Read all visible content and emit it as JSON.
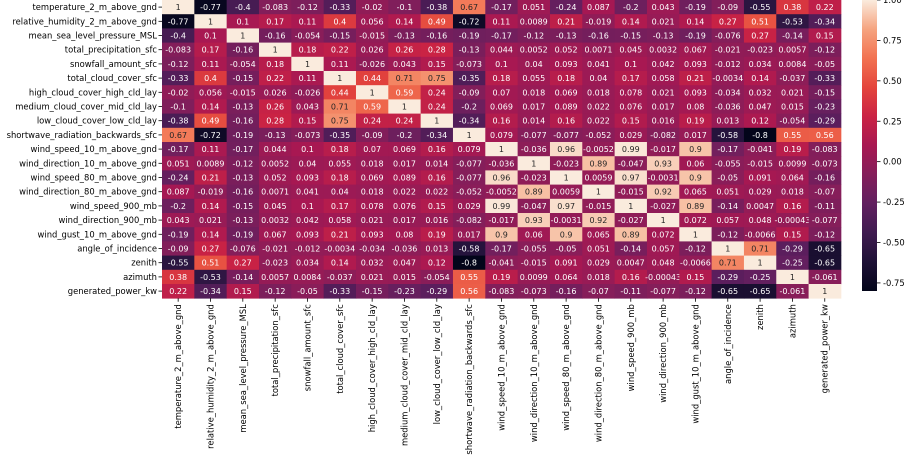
{
  "chart_data": {
    "type": "heatmap",
    "title": "",
    "xlabel": "",
    "ylabel": "",
    "vmin": -0.8,
    "vmax": 1.0,
    "colormap": "rocket",
    "colorbar_ticks": [
      1.0,
      0.75,
      0.5,
      0.25,
      0.0,
      -0.25,
      -0.5,
      -0.75
    ],
    "colorbar_tick_labels": [
      "1.00",
      "0.75",
      "0.50",
      "0.25",
      "0.00",
      "-0.25",
      "-0.50",
      "-0.75"
    ],
    "variables": [
      "temperature_2_m_above_gnd",
      "relative_humidity_2_m_above_gnd",
      "mean_sea_level_pressure_MSL",
      "total_precipitation_sfc",
      "snowfall_amount_sfc",
      "total_cloud_cover_sfc",
      "high_cloud_cover_high_cld_lay",
      "medium_cloud_cover_mid_cld_lay",
      "low_cloud_cover_low_cld_lay",
      "shortwave_radiation_backwards_sfc",
      "wind_speed_10_m_above_gnd",
      "wind_direction_10_m_above_gnd",
      "wind_speed_80_m_above_gnd",
      "wind_direction_80_m_above_gnd",
      "wind_speed_900_mb",
      "wind_direction_900_mb",
      "wind_gust_10_m_above_gnd",
      "angle_of_incidence",
      "zenith",
      "azimuth",
      "generated_power_kw"
    ],
    "values": [
      [
        1,
        -0.77,
        -0.4,
        -0.083,
        -0.12,
        -0.33,
        -0.02,
        -0.1,
        -0.38,
        0.67,
        -0.17,
        0.051,
        -0.24,
        0.087,
        -0.2,
        0.043,
        -0.19,
        -0.09,
        -0.55,
        0.38,
        0.22
      ],
      [
        -0.77,
        1,
        0.1,
        0.17,
        0.11,
        0.4,
        0.056,
        0.14,
        0.49,
        -0.72,
        0.11,
        0.0089,
        0.21,
        -0.019,
        0.14,
        0.021,
        0.14,
        0.27,
        0.51,
        -0.53,
        -0.34
      ],
      [
        -0.4,
        0.1,
        1,
        -0.16,
        -0.054,
        -0.15,
        -0.015,
        -0.13,
        -0.16,
        -0.19,
        -0.17,
        -0.12,
        -0.13,
        -0.16,
        -0.15,
        -0.13,
        -0.19,
        -0.076,
        0.27,
        -0.14,
        0.15
      ],
      [
        -0.083,
        0.17,
        -0.16,
        1,
        0.18,
        0.22,
        0.026,
        0.26,
        0.28,
        -0.13,
        0.044,
        0.0052,
        0.052,
        0.0071,
        0.045,
        0.0032,
        0.067,
        -0.021,
        -0.023,
        0.0057,
        -0.12
      ],
      [
        -0.12,
        0.11,
        -0.054,
        0.18,
        1,
        0.11,
        -0.026,
        0.043,
        0.15,
        -0.073,
        0.1,
        0.04,
        0.093,
        0.041,
        0.1,
        0.042,
        0.093,
        -0.012,
        0.034,
        0.0084,
        -0.05
      ],
      [
        -0.33,
        0.4,
        -0.15,
        0.22,
        0.11,
        1,
        0.44,
        0.71,
        0.75,
        -0.35,
        0.18,
        0.055,
        0.18,
        0.04,
        0.17,
        0.058,
        0.21,
        -0.0034,
        0.14,
        -0.037,
        -0.33
      ],
      [
        -0.02,
        0.056,
        -0.015,
        0.026,
        -0.026,
        0.44,
        1,
        0.59,
        0.24,
        -0.09,
        0.07,
        0.018,
        0.069,
        0.018,
        0.078,
        0.021,
        0.093,
        -0.034,
        0.032,
        0.021,
        -0.15
      ],
      [
        -0.1,
        0.14,
        -0.13,
        0.26,
        0.043,
        0.71,
        0.59,
        1,
        0.24,
        -0.2,
        0.069,
        0.017,
        0.089,
        0.022,
        0.076,
        0.017,
        0.08,
        -0.036,
        0.047,
        0.015,
        -0.23
      ],
      [
        -0.38,
        0.49,
        -0.16,
        0.28,
        0.15,
        0.75,
        0.24,
        0.24,
        1,
        -0.34,
        0.16,
        0.014,
        0.16,
        0.022,
        0.15,
        0.016,
        0.19,
        0.013,
        0.12,
        -0.054,
        -0.29
      ],
      [
        0.67,
        -0.72,
        -0.19,
        -0.13,
        -0.073,
        -0.35,
        -0.09,
        -0.2,
        -0.34,
        1,
        0.079,
        -0.077,
        -0.077,
        -0.052,
        0.029,
        -0.082,
        0.017,
        -0.58,
        -0.8,
        0.55,
        0.56
      ],
      [
        -0.17,
        0.11,
        -0.17,
        0.044,
        0.1,
        0.18,
        0.07,
        0.069,
        0.16,
        0.079,
        1,
        -0.036,
        0.96,
        -0.0052,
        0.99,
        -0.017,
        0.9,
        -0.17,
        -0.041,
        0.19,
        -0.083
      ],
      [
        0.051,
        0.0089,
        -0.12,
        0.0052,
        0.04,
        0.055,
        0.018,
        0.017,
        0.014,
        -0.077,
        -0.036,
        1,
        -0.023,
        0.89,
        -0.047,
        0.93,
        0.06,
        -0.055,
        -0.015,
        0.0099,
        -0.073
      ],
      [
        -0.24,
        0.21,
        -0.13,
        0.052,
        0.093,
        0.18,
        0.069,
        0.089,
        0.16,
        -0.077,
        0.96,
        -0.023,
        1,
        0.0059,
        0.97,
        -0.0031,
        0.9,
        -0.05,
        0.091,
        0.064,
        -0.16
      ],
      [
        0.087,
        -0.019,
        -0.16,
        0.0071,
        0.041,
        0.04,
        0.018,
        0.022,
        0.022,
        -0.052,
        -0.0052,
        0.89,
        0.0059,
        1,
        -0.015,
        0.92,
        0.065,
        0.051,
        0.029,
        0.018,
        -0.07
      ],
      [
        -0.2,
        0.14,
        -0.15,
        0.045,
        0.1,
        0.17,
        0.078,
        0.076,
        0.15,
        0.029,
        0.99,
        -0.047,
        0.97,
        -0.015,
        1,
        -0.027,
        0.89,
        -0.14,
        0.0047,
        0.16,
        -0.11
      ],
      [
        0.043,
        0.021,
        -0.13,
        0.0032,
        0.042,
        0.058,
        0.021,
        0.017,
        0.016,
        -0.082,
        -0.017,
        0.93,
        -0.0031,
        0.92,
        -0.027,
        1,
        0.072,
        0.057,
        0.048,
        -0.00043,
        -0.077
      ],
      [
        -0.19,
        0.14,
        -0.19,
        0.067,
        0.093,
        0.21,
        0.093,
        0.08,
        0.19,
        0.017,
        0.9,
        0.06,
        0.9,
        0.065,
        0.89,
        0.072,
        1,
        -0.12,
        -0.0066,
        0.15,
        -0.12
      ],
      [
        -0.09,
        0.27,
        -0.076,
        -0.021,
        -0.012,
        -0.0034,
        -0.034,
        -0.036,
        0.013,
        -0.58,
        -0.17,
        -0.055,
        -0.05,
        0.051,
        -0.14,
        0.057,
        -0.12,
        1,
        0.71,
        -0.29,
        -0.65
      ],
      [
        -0.55,
        0.51,
        0.27,
        -0.023,
        0.034,
        0.14,
        0.032,
        0.047,
        0.12,
        -0.8,
        -0.041,
        -0.015,
        0.091,
        0.029,
        0.0047,
        0.048,
        -0.0066,
        0.71,
        1,
        -0.25,
        -0.65
      ],
      [
        0.38,
        -0.53,
        -0.14,
        0.0057,
        0.0084,
        -0.037,
        0.021,
        0.015,
        -0.054,
        0.55,
        0.19,
        0.0099,
        0.064,
        0.018,
        0.16,
        -0.00043,
        0.15,
        -0.29,
        -0.25,
        1,
        -0.061
      ],
      [
        0.22,
        -0.34,
        0.15,
        -0.12,
        -0.05,
        -0.33,
        -0.15,
        -0.23,
        -0.29,
        0.56,
        -0.083,
        -0.073,
        -0.16,
        -0.07,
        -0.11,
        -0.077,
        -0.12,
        -0.65,
        -0.65,
        -0.061,
        1
      ]
    ]
  }
}
